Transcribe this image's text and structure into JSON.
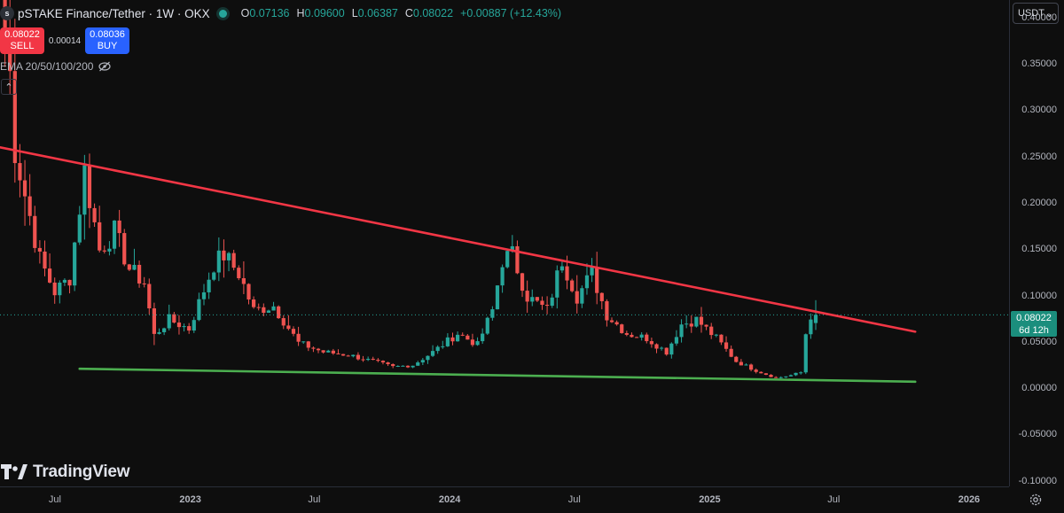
{
  "header": {
    "logo_text": "s",
    "title": "pSTAKE Finance/Tether · 1W · OKX",
    "ohlc": {
      "o_label": "O",
      "o_value": "0.07136",
      "h_label": "H",
      "h_value": "0.09600",
      "l_label": "L",
      "l_value": "0.06387",
      "c_label": "C",
      "c_value": "0.08022",
      "change": "+0.00887 (+12.43%)"
    }
  },
  "trade": {
    "sell_price": "0.08022",
    "sell_label": "SELL",
    "spread": "0.00014",
    "buy_price": "0.08036",
    "buy_label": "BUY"
  },
  "indicator": {
    "label": "EMA 20/50/100/200"
  },
  "currency": {
    "label": "USDT"
  },
  "watermark": {
    "text": "TradingView"
  },
  "price_tag": {
    "price": "0.08022",
    "countdown": "6d 12h"
  },
  "colors": {
    "up": "#26a69a",
    "down": "#ef5350",
    "resistance": "#f23645",
    "support": "#4caf50",
    "background": "#0e0e0e"
  },
  "chart_data": {
    "type": "candlestick",
    "interval": "1W",
    "x_range": [
      "2022-04-11",
      "2026-03-01"
    ],
    "ylim": [
      -0.105,
      0.42
    ],
    "y_ticks": [
      "0.40000",
      "0.35000",
      "0.30000",
      "0.25000",
      "0.20000",
      "0.15000",
      "0.10000",
      "0.05000",
      "0.00000",
      "-0.05000",
      "-0.10000"
    ],
    "y_tick_values": [
      0.4,
      0.35,
      0.3,
      0.25,
      0.2,
      0.15,
      0.1,
      0.05,
      0.0,
      -0.05,
      -0.1
    ],
    "x_ticks": [
      {
        "label": "Jul",
        "date": "2022-07-01"
      },
      {
        "label": "2023",
        "date": "2023-01-01"
      },
      {
        "label": "Jul",
        "date": "2023-07-01"
      },
      {
        "label": "2024",
        "date": "2024-01-01"
      },
      {
        "label": "Jul",
        "date": "2024-07-01"
      },
      {
        "label": "2025",
        "date": "2025-01-01"
      },
      {
        "label": "Jul",
        "date": "2025-07-01"
      },
      {
        "label": "2026",
        "date": "2026-01-01"
      }
    ],
    "anchors": [
      [
        "2022-04-18",
        0.38
      ],
      [
        "2022-04-25",
        0.34
      ],
      [
        "2022-05-02",
        0.26
      ],
      [
        "2022-05-16",
        0.21
      ],
      [
        "2022-06-06",
        0.14
      ],
      [
        "2022-06-27",
        0.105
      ],
      [
        "2022-07-18",
        0.12
      ],
      [
        "2022-08-08",
        0.235
      ],
      [
        "2022-08-29",
        0.15
      ],
      [
        "2022-09-19",
        0.17
      ],
      [
        "2022-10-10",
        0.13
      ],
      [
        "2022-10-31",
        0.115
      ],
      [
        "2022-11-14",
        0.058
      ],
      [
        "2022-12-05",
        0.075
      ],
      [
        "2023-01-02",
        0.065
      ],
      [
        "2023-02-06",
        0.135
      ],
      [
        "2023-02-20",
        0.145
      ],
      [
        "2023-03-13",
        0.125
      ],
      [
        "2023-04-03",
        0.085
      ],
      [
        "2023-05-01",
        0.09
      ],
      [
        "2023-06-05",
        0.05
      ],
      [
        "2023-07-10",
        0.04
      ],
      [
        "2023-08-14",
        0.037
      ],
      [
        "2023-09-18",
        0.03
      ],
      [
        "2023-10-16",
        0.024
      ],
      [
        "2023-11-13",
        0.026
      ],
      [
        "2023-12-11",
        0.04
      ],
      [
        "2024-01-15",
        0.06
      ],
      [
        "2024-02-12",
        0.048
      ],
      [
        "2024-03-04",
        0.085
      ],
      [
        "2024-03-18",
        0.14
      ],
      [
        "2024-04-01",
        0.145
      ],
      [
        "2024-04-22",
        0.1
      ],
      [
        "2024-05-20",
        0.085
      ],
      [
        "2024-06-10",
        0.14
      ],
      [
        "2024-07-01",
        0.1
      ],
      [
        "2024-07-22",
        0.125
      ],
      [
        "2024-08-12",
        0.08
      ],
      [
        "2024-09-09",
        0.06
      ],
      [
        "2024-10-07",
        0.055
      ],
      [
        "2024-11-04",
        0.04
      ],
      [
        "2024-11-25",
        0.07
      ],
      [
        "2024-12-16",
        0.075
      ],
      [
        "2025-01-13",
        0.055
      ],
      [
        "2025-02-10",
        0.03
      ],
      [
        "2025-03-10",
        0.02
      ],
      [
        "2025-04-07",
        0.012
      ],
      [
        "2025-04-28",
        0.015
      ],
      [
        "2025-05-12",
        0.018
      ],
      [
        "2025-05-19",
        0.06
      ],
      [
        "2025-05-26",
        0.08
      ]
    ],
    "last_candle": {
      "date": "2025-06-02",
      "open": 0.07136,
      "high": 0.096,
      "low": 0.06387,
      "close": 0.08022
    },
    "trendlines": [
      {
        "name": "resistance",
        "from": [
          "2022-04-11",
          0.261
        ],
        "to": [
          "2025-10-20",
          0.062
        ]
      },
      {
        "name": "support",
        "from": [
          "2022-08-01",
          0.022
        ],
        "to": [
          "2025-10-20",
          0.008
        ]
      }
    ],
    "grid": false,
    "legend": "none"
  }
}
